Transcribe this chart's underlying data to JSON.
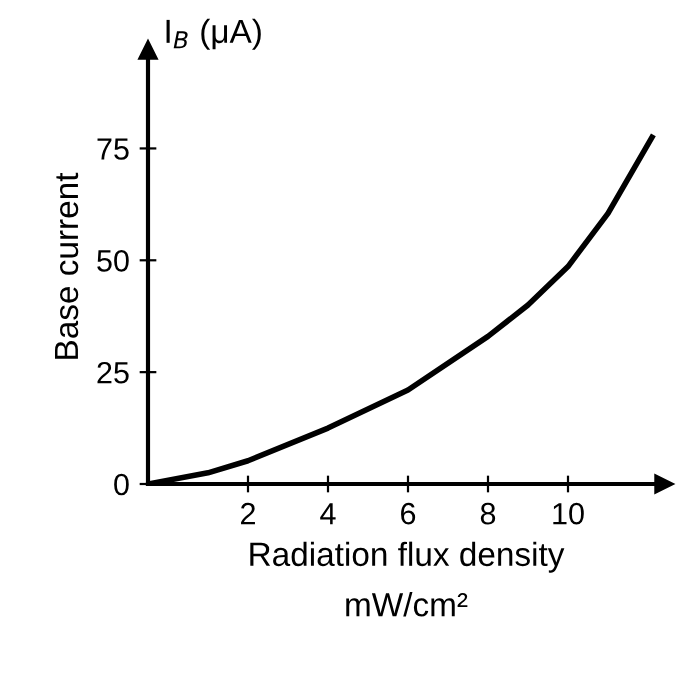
{
  "chart_data": {
    "type": "line",
    "ylabel": "Base current",
    "xlabel": "Radiation flux density\nmW/cm²",
    "annotations": [
      "I$_{B}$ (μA)"
    ],
    "x": [
      -0.5,
      1,
      2,
      4,
      6,
      8,
      9,
      10,
      11,
      12.1
    ],
    "series": [
      {
        "color": "#000000",
        "values": [
          0,
          2.5,
          5.2,
          12.5,
          21,
          33,
          40,
          48.6,
          60.5,
          77.5
        ]
      }
    ],
    "xlim": [
      -0.5,
      12.4
    ],
    "ylim": [
      0,
      97
    ],
    "xticks": [
      2,
      4,
      6,
      8,
      10
    ],
    "yticks": [
      0,
      25,
      50,
      75
    ],
    "grid": false,
    "legend": false,
    "marker": "none",
    "line_style": "solid"
  }
}
